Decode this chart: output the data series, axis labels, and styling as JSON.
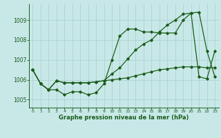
{
  "title": "Graphe pression niveau de la mer (hPa)",
  "background_color": "#c8e8e8",
  "grid_color": "#b0d4d4",
  "line_color": "#1a5c1a",
  "x_ticks": [
    0,
    1,
    2,
    3,
    4,
    5,
    6,
    7,
    8,
    9,
    10,
    11,
    12,
    13,
    14,
    15,
    16,
    17,
    18,
    19,
    20,
    21,
    22,
    23
  ],
  "y_ticks": [
    1005,
    1006,
    1007,
    1008,
    1009
  ],
  "ylim": [
    1004.6,
    1009.8
  ],
  "xlim": [
    -0.5,
    23.5
  ],
  "series1": [
    1006.5,
    1005.8,
    1005.5,
    1005.5,
    1005.25,
    1005.4,
    1005.4,
    1005.25,
    1005.35,
    1005.8,
    1007.0,
    1008.2,
    1008.55,
    1008.55,
    1008.4,
    1008.4,
    1008.35,
    1008.35,
    1008.35,
    1009.0,
    1009.35,
    1006.15,
    1006.05,
    1007.45
  ],
  "series2": [
    1006.5,
    1005.8,
    1005.5,
    1005.95,
    1005.85,
    1005.85,
    1005.85,
    1005.85,
    1005.9,
    1005.95,
    1006.0,
    1006.05,
    1006.1,
    1006.2,
    1006.3,
    1006.4,
    1006.5,
    1006.55,
    1006.6,
    1006.65,
    1006.65,
    1006.65,
    1006.6,
    1006.6
  ],
  "series3": [
    1006.5,
    1005.8,
    1005.5,
    1005.95,
    1005.85,
    1005.85,
    1005.85,
    1005.85,
    1005.9,
    1005.95,
    1006.3,
    1006.6,
    1007.05,
    1007.5,
    1007.8,
    1008.0,
    1008.4,
    1008.75,
    1009.0,
    1009.3,
    1009.35,
    1009.4,
    1007.45,
    1006.15
  ]
}
